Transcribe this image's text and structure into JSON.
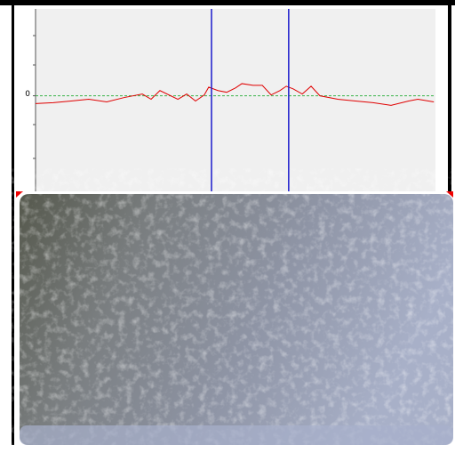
{
  "chart_data": {
    "type": "line",
    "x": [
      0,
      4.4,
      8.9,
      13.3,
      17.8,
      22.2,
      26.7,
      28.9,
      31.1,
      35.6,
      37.8,
      40,
      42.2,
      43.3,
      45.6,
      47.8,
      50,
      51.6,
      54.4,
      56.7,
      58.9,
      61.1,
      62.7,
      64.4,
      66.7,
      68.9,
      71.1,
      75.6,
      80,
      84.4,
      88.9,
      93.3,
      95.6,
      99.6
    ],
    "series": [
      {
        "color": "#e00000",
        "values": [
          -0.9,
          -0.8,
          -0.6,
          -0.4,
          -0.7,
          -0.2,
          0.2,
          -0.4,
          0.6,
          -0.4,
          0.2,
          -0.6,
          0.1,
          1.0,
          0.6,
          0.4,
          0.9,
          1.4,
          1.2,
          1.2,
          0.1,
          0.6,
          1.1,
          0.8,
          0.2,
          1.1,
          0,
          -0.4,
          -0.6,
          -0.8,
          -1.1,
          -0.6,
          -0.4,
          -0.7
        ]
      }
    ],
    "xlim": [
      0,
      100
    ],
    "ylim": [
      -11,
      10
    ],
    "yticks": [
      0
    ],
    "baseline": 0,
    "baseline_color": "#3cb44b",
    "cursors": [
      44,
      63.3
    ],
    "cursor_color": "#1a1acc"
  }
}
